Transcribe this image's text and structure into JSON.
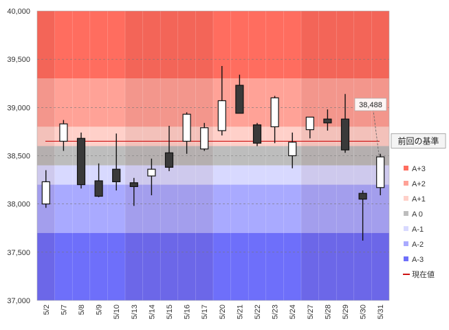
{
  "chart_data": {
    "type": "candlestick",
    "title": "",
    "xlabel": "",
    "ylabel": "",
    "ylim": [
      37000,
      40000
    ],
    "yticks": [
      37000,
      37500,
      38000,
      38500,
      39000,
      39500,
      40000
    ],
    "ytick_labels": [
      "37,000",
      "37,500",
      "38,000",
      "38,500",
      "39,000",
      "39,500",
      "40,000"
    ],
    "categories": [
      "5/2",
      "5/7",
      "5/8",
      "5/9",
      "5/10",
      "5/13",
      "5/14",
      "5/15",
      "5/16",
      "5/17",
      "5/20",
      "5/21",
      "5/22",
      "5/23",
      "5/24",
      "5/27",
      "5/28",
      "5/29",
      "5/30",
      "5/31"
    ],
    "candles": [
      {
        "open": 38000,
        "close": 38230,
        "high": 38350,
        "low": 37960
      },
      {
        "open": 38650,
        "close": 38830,
        "high": 38870,
        "low": 38550
      },
      {
        "open": 38680,
        "close": 38200,
        "high": 38740,
        "low": 38160
      },
      {
        "open": 38240,
        "close": 38080,
        "high": 38420,
        "low": 38070
      },
      {
        "open": 38360,
        "close": 38230,
        "high": 38730,
        "low": 38140
      },
      {
        "open": 38220,
        "close": 38180,
        "high": 38270,
        "low": 37980
      },
      {
        "open": 38290,
        "close": 38360,
        "high": 38470,
        "low": 38090
      },
      {
        "open": 38530,
        "close": 38380,
        "high": 38810,
        "low": 38340
      },
      {
        "open": 38650,
        "close": 38930,
        "high": 38950,
        "low": 38520
      },
      {
        "open": 38570,
        "close": 38790,
        "high": 38840,
        "low": 38550
      },
      {
        "open": 38760,
        "close": 39070,
        "high": 39430,
        "low": 38710
      },
      {
        "open": 39230,
        "close": 38940,
        "high": 39340,
        "low": 38940
      },
      {
        "open": 38820,
        "close": 38630,
        "high": 38840,
        "low": 38600
      },
      {
        "open": 38800,
        "close": 39100,
        "high": 39120,
        "low": 38630
      },
      {
        "open": 38500,
        "close": 38640,
        "high": 38740,
        "low": 38370
      },
      {
        "open": 38770,
        "close": 38900,
        "high": 38900,
        "low": 38680
      },
      {
        "open": 38880,
        "close": 38840,
        "high": 38980,
        "low": 38760
      },
      {
        "open": 38880,
        "close": 38560,
        "high": 39140,
        "low": 38530
      },
      {
        "open": 38110,
        "close": 38050,
        "high": 38140,
        "low": 37620
      },
      {
        "open": 38170,
        "close": 38488,
        "high": 38520,
        "low": 38090
      }
    ],
    "bands": [
      {
        "name": "A+3",
        "from": 39300,
        "to": 40000,
        "color": "#ff6d5f"
      },
      {
        "name": "A+2",
        "from": 38800,
        "to": 39300,
        "color": "#ffa297"
      },
      {
        "name": "A+1",
        "from": 38600,
        "to": 38800,
        "color": "#ffd0c9"
      },
      {
        "name": "A 0",
        "from": 38400,
        "to": 38600,
        "color": "#bdbdbd"
      },
      {
        "name": "A-1",
        "from": 38200,
        "to": 38400,
        "color": "#d8d9ff"
      },
      {
        "name": "A-2",
        "from": 37700,
        "to": 38200,
        "color": "#a9aaff"
      },
      {
        "name": "A-3",
        "from": 37000,
        "to": 37700,
        "color": "#6e6ffa"
      }
    ],
    "reference_line": {
      "name": "現在値",
      "value": 38650,
      "color": "#cc1111",
      "label": "前回の基準"
    },
    "callout": {
      "category": "5/31",
      "value": 38488,
      "label": "38,488"
    },
    "legend": [
      "A+3",
      "A+2",
      "A+1",
      "A 0",
      "A-1",
      "A-2",
      "A-3",
      "現在値"
    ],
    "legend_placement": "right"
  }
}
